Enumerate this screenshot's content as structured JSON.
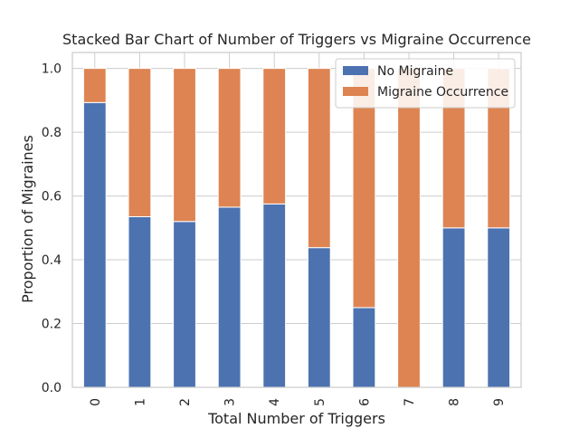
{
  "chart_data": {
    "type": "bar",
    "stacked": true,
    "title": "Stacked Bar Chart of Number of Triggers vs Migraine Occurrence",
    "xlabel": "Total Number of Triggers",
    "ylabel": "Proportion of Migraines",
    "categories": [
      "0",
      "1",
      "2",
      "3",
      "4",
      "5",
      "6",
      "7",
      "8",
      "9"
    ],
    "series": [
      {
        "name": "No Migraine",
        "color": "#4c72b0",
        "values": [
          0.893,
          0.535,
          0.52,
          0.565,
          0.575,
          0.438,
          0.25,
          0.0,
          0.5,
          0.5
        ]
      },
      {
        "name": "Migraine Occurrence",
        "color": "#dd8452",
        "values": [
          0.107,
          0.465,
          0.48,
          0.435,
          0.425,
          0.562,
          0.75,
          1.0,
          0.5,
          0.5
        ]
      }
    ],
    "ylim": [
      0,
      1.05
    ],
    "yticks": [
      "0.0",
      "0.2",
      "0.4",
      "0.6",
      "0.8",
      "1.0"
    ],
    "grid": true,
    "legend_position": "top-right"
  }
}
